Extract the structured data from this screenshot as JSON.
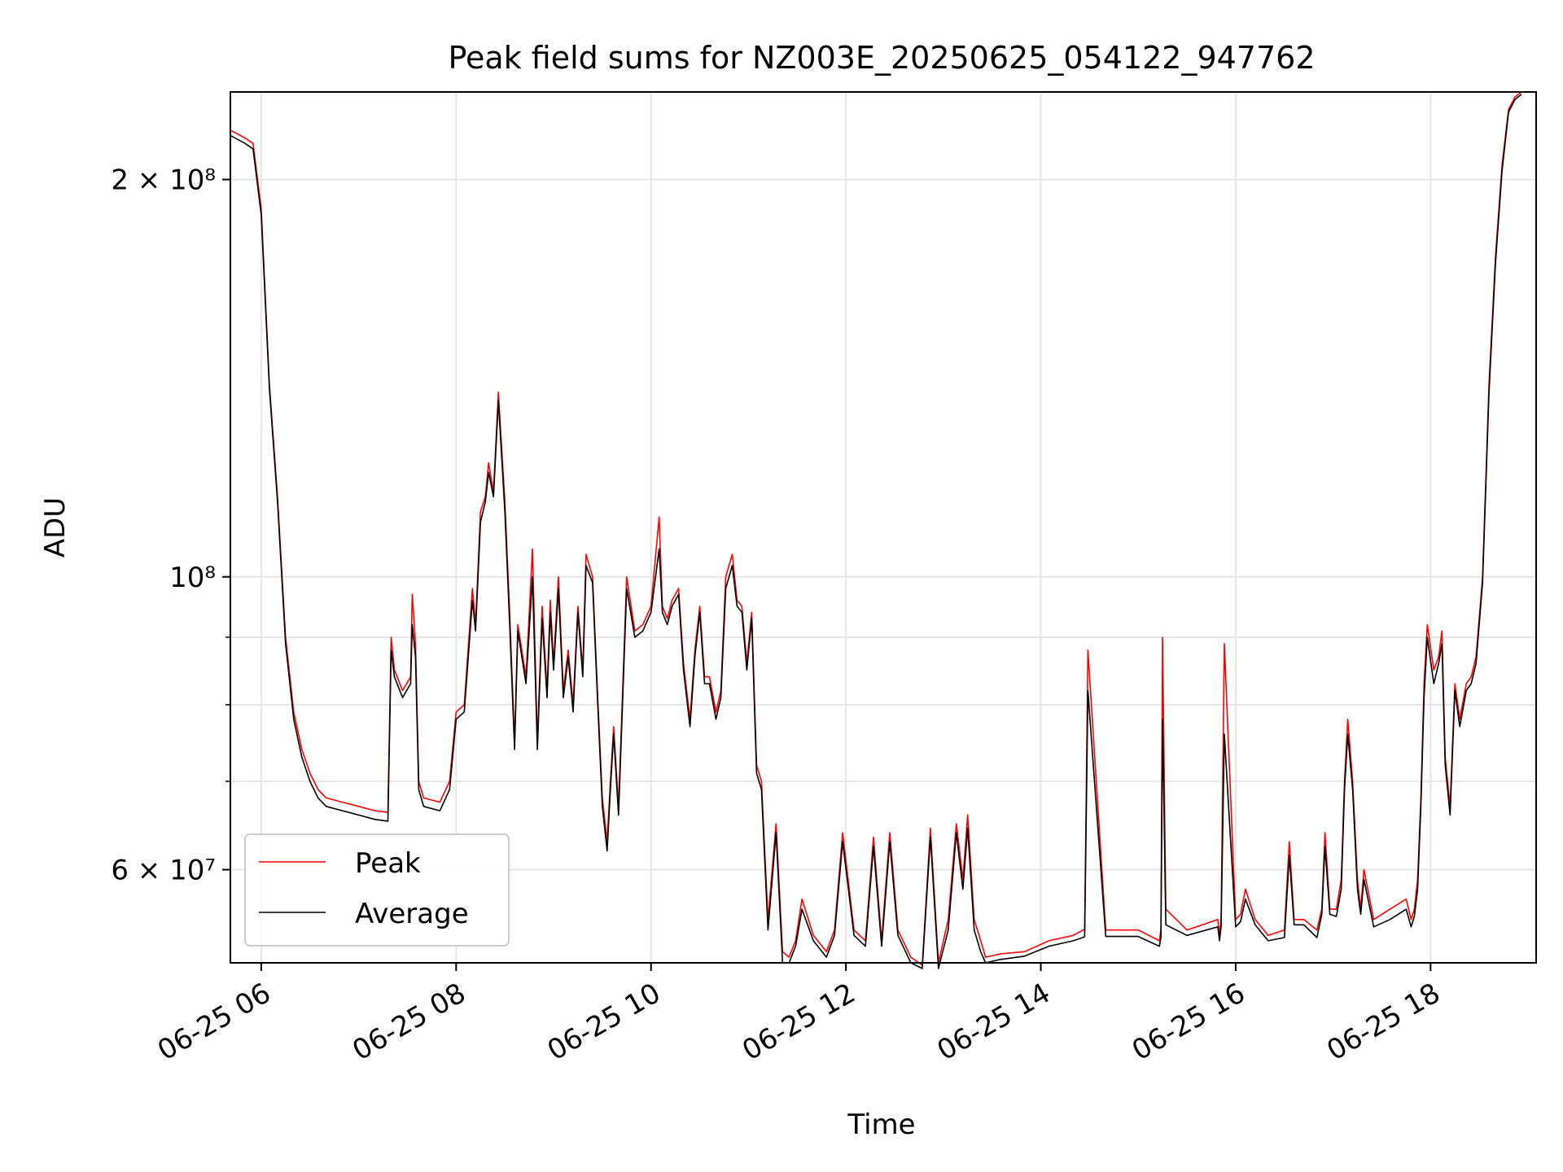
{
  "chart_data": {
    "type": "line",
    "title": "Peak field sums for NZ003E_20250625_054122_947762",
    "xlabel": "Time",
    "ylabel": "ADU",
    "y_scale": "log",
    "grid": true,
    "legend": "lower-left",
    "xlim": [
      "2025-06-25 05:41",
      "2025-06-25 19:05"
    ],
    "ylim": [
      51000000,
      233000000
    ],
    "x_ticks": [
      {
        "t": "2025-06-25 06:00",
        "label": "06-25 06"
      },
      {
        "t": "2025-06-25 08:00",
        "label": "06-25 08"
      },
      {
        "t": "2025-06-25 10:00",
        "label": "06-25 10"
      },
      {
        "t": "2025-06-25 12:00",
        "label": "06-25 12"
      },
      {
        "t": "2025-06-25 14:00",
        "label": "06-25 14"
      },
      {
        "t": "2025-06-25 16:00",
        "label": "06-25 16"
      },
      {
        "t": "2025-06-25 18:00",
        "label": "06-25 18"
      }
    ],
    "y_major_ticks": [
      {
        "v": 60000000,
        "label": "6 × 10⁷"
      },
      {
        "v": 100000000,
        "label": "10⁸"
      },
      {
        "v": 200000000,
        "label": "2 × 10⁸"
      }
    ],
    "y_minor_ticks": [
      70000000,
      80000000,
      90000000
    ],
    "series": [
      {
        "name": "Peak",
        "color": "#ff0000"
      },
      {
        "name": "Average",
        "color": "#000000"
      }
    ],
    "x": [
      "2025-06-25 05:41",
      "2025-06-25 05:50",
      "2025-06-25 05:55",
      "2025-06-25 06:00",
      "2025-06-25 06:05",
      "2025-06-25 06:10",
      "2025-06-25 06:15",
      "2025-06-25 06:20",
      "2025-06-25 06:25",
      "2025-06-25 06:30",
      "2025-06-25 06:35",
      "2025-06-25 06:40",
      "2025-06-25 06:50",
      "2025-06-25 07:00",
      "2025-06-25 07:10",
      "2025-06-25 07:18",
      "2025-06-25 07:20",
      "2025-06-25 07:22",
      "2025-06-25 07:27",
      "2025-06-25 07:32",
      "2025-06-25 07:33",
      "2025-06-25 07:35",
      "2025-06-25 07:37",
      "2025-06-25 07:40",
      "2025-06-25 07:50",
      "2025-06-25 07:56",
      "2025-06-25 08:00",
      "2025-06-25 08:05",
      "2025-06-25 08:10",
      "2025-06-25 08:12",
      "2025-06-25 08:15",
      "2025-06-25 08:18",
      "2025-06-25 08:20",
      "2025-06-25 08:23",
      "2025-06-25 08:26",
      "2025-06-25 08:30",
      "2025-06-25 08:33",
      "2025-06-25 08:36",
      "2025-06-25 08:38",
      "2025-06-25 08:43",
      "2025-06-25 08:47",
      "2025-06-25 08:50",
      "2025-06-25 08:53",
      "2025-06-25 08:56",
      "2025-06-25 08:58",
      "2025-06-25 09:00",
      "2025-06-25 09:03",
      "2025-06-25 09:06",
      "2025-06-25 09:09",
      "2025-06-25 09:12",
      "2025-06-25 09:15",
      "2025-06-25 09:18",
      "2025-06-25 09:20",
      "2025-06-25 09:24",
      "2025-06-25 09:27",
      "2025-06-25 09:30",
      "2025-06-25 09:33",
      "2025-06-25 09:35",
      "2025-06-25 09:37",
      "2025-06-25 09:40",
      "2025-06-25 09:45",
      "2025-06-25 09:50",
      "2025-06-25 09:55",
      "2025-06-25 10:00",
      "2025-06-25 10:05",
      "2025-06-25 10:07",
      "2025-06-25 10:10",
      "2025-06-25 10:13",
      "2025-06-25 10:17",
      "2025-06-25 10:20",
      "2025-06-25 10:24",
      "2025-06-25 10:27",
      "2025-06-25 10:30",
      "2025-06-25 10:33",
      "2025-06-25 10:36",
      "2025-06-25 10:40",
      "2025-06-25 10:43",
      "2025-06-25 10:46",
      "2025-06-25 10:50",
      "2025-06-25 10:53",
      "2025-06-25 10:56",
      "2025-06-25 10:59",
      "2025-06-25 11:02",
      "2025-06-25 11:05",
      "2025-06-25 11:08",
      "2025-06-25 11:12",
      "2025-06-25 11:17",
      "2025-06-25 11:21",
      "2025-06-25 11:25",
      "2025-06-25 11:29",
      "2025-06-25 11:33",
      "2025-06-25 11:40",
      "2025-06-25 11:48",
      "2025-06-25 11:53",
      "2025-06-25 11:58",
      "2025-06-25 12:05",
      "2025-06-25 12:12",
      "2025-06-25 12:17",
      "2025-06-25 12:22",
      "2025-06-25 12:27",
      "2025-06-25 12:32",
      "2025-06-25 12:40",
      "2025-06-25 12:47",
      "2025-06-25 12:52",
      "2025-06-25 12:57",
      "2025-06-25 13:03",
      "2025-06-25 13:08",
      "2025-06-25 13:12",
      "2025-06-25 13:15",
      "2025-06-25 13:19",
      "2025-06-25 13:23",
      "2025-06-25 13:26",
      "2025-06-25 13:35",
      "2025-06-25 13:50",
      "2025-06-25 14:05",
      "2025-06-25 14:20",
      "2025-06-25 14:26",
      "2025-06-25 14:27",
      "2025-06-25 14:29",
      "2025-06-25 14:40",
      "2025-06-25 15:00",
      "2025-06-25 15:13",
      "2025-06-25 15:14",
      "2025-06-25 15:15",
      "2025-06-25 15:17",
      "2025-06-25 15:30",
      "2025-06-25 15:49",
      "2025-06-25 15:50",
      "2025-06-25 15:51",
      "2025-06-25 15:53",
      "2025-06-25 16:00",
      "2025-06-25 16:03",
      "2025-06-25 16:06",
      "2025-06-25 16:12",
      "2025-06-25 16:20",
      "2025-06-25 16:30",
      "2025-06-25 16:33",
      "2025-06-25 16:36",
      "2025-06-25 16:42",
      "2025-06-25 16:50",
      "2025-06-25 16:53",
      "2025-06-25 16:55",
      "2025-06-25 16:58",
      "2025-06-25 17:02",
      "2025-06-25 17:05",
      "2025-06-25 17:07",
      "2025-06-25 17:09",
      "2025-06-25 17:12",
      "2025-06-25 17:15",
      "2025-06-25 17:17",
      "2025-06-25 17:19",
      "2025-06-25 17:25",
      "2025-06-25 17:35",
      "2025-06-25 17:45",
      "2025-06-25 17:48",
      "2025-06-25 17:50",
      "2025-06-25 17:52",
      "2025-06-25 17:54",
      "2025-06-25 17:56",
      "2025-06-25 17:58",
      "2025-06-25 18:02",
      "2025-06-25 18:05",
      "2025-06-25 18:07",
      "2025-06-25 18:09",
      "2025-06-25 18:12",
      "2025-06-25 18:15",
      "2025-06-25 18:18",
      "2025-06-25 18:22",
      "2025-06-25 18:25",
      "2025-06-25 18:28",
      "2025-06-25 18:32",
      "2025-06-25 18:36",
      "2025-06-25 18:40",
      "2025-06-25 18:44",
      "2025-06-25 18:48",
      "2025-06-25 18:52",
      "2025-06-25 18:56",
      "2025-06-25 19:05"
    ],
    "peak": [
      218000000,
      215000000,
      213000000,
      190000000,
      140000000,
      115000000,
      90000000,
      79000000,
      74000000,
      71000000,
      69000000,
      68000000,
      67500000,
      67000000,
      66500000,
      66300000,
      90000000,
      85000000,
      82000000,
      84000000,
      97000000,
      89000000,
      70000000,
      68000000,
      67500000,
      70000000,
      79000000,
      80000000,
      98000000,
      92000000,
      112000000,
      115000000,
      122000000,
      116000000,
      138000000,
      114000000,
      94000000,
      75000000,
      92000000,
      84000000,
      105000000,
      75000000,
      95000000,
      82000000,
      96000000,
      86000000,
      100000000,
      82000000,
      88000000,
      80000000,
      95000000,
      85000000,
      104000000,
      100000000,
      82000000,
      68000000,
      63000000,
      70000000,
      77000000,
      67000000,
      100000000,
      91000000,
      92000000,
      95000000,
      111000000,
      95000000,
      93000000,
      96000000,
      98000000,
      86000000,
      78000000,
      88000000,
      95000000,
      84000000,
      84000000,
      79000000,
      82000000,
      100000000,
      104000000,
      96000000,
      95000000,
      86000000,
      94000000,
      72000000,
      70000000,
      55000000,
      65000000,
      52000000,
      51500000,
      53000000,
      57000000,
      53500000,
      52000000,
      54000000,
      64000000,
      54000000,
      53000000,
      63500000,
      53000000,
      64000000,
      54000000,
      51500000,
      50800000,
      64500000,
      51000000,
      55000000,
      65000000,
      59000000,
      66000000,
      55000000,
      53000000,
      51500000,
      51800000,
      52000000,
      53000000,
      53500000,
      54000000,
      54000000,
      88000000,
      54000000,
      54000000,
      53000000,
      54000000,
      90000000,
      56000000,
      54000000,
      55000000,
      53500000,
      55000000,
      89000000,
      55000000,
      55500000,
      58000000,
      55000000,
      53500000,
      54000000,
      63000000,
      55000000,
      55000000,
      54000000,
      56000000,
      64000000,
      56000000,
      56000000,
      59000000,
      70000000,
      78000000,
      70000000,
      59000000,
      56000000,
      60000000,
      55000000,
      56000000,
      57000000,
      55000000,
      56000000,
      59000000,
      68000000,
      83000000,
      92000000,
      85000000,
      87000000,
      91000000,
      73000000,
      67000000,
      83000000,
      78000000,
      83000000,
      84000000,
      87000000,
      100000000,
      140000000,
      175000000,
      205000000,
      226000000,
      231000000,
      233000000
    ],
    "average": [
      216000000,
      213000000,
      211000000,
      188000000,
      139000000,
      114000000,
      89000000,
      78000000,
      73000000,
      70000000,
      68000000,
      67000000,
      66500000,
      66000000,
      65500000,
      65300000,
      88000000,
      84000000,
      81000000,
      83000000,
      92000000,
      87000000,
      69000000,
      67000000,
      66500000,
      69000000,
      78000000,
      79000000,
      96000000,
      91000000,
      110000000,
      114000000,
      120000000,
      115000000,
      136000000,
      112000000,
      92000000,
      74000000,
      91000000,
      83000000,
      100000000,
      74000000,
      93000000,
      81000000,
      94000000,
      85000000,
      98000000,
      81000000,
      87000000,
      79000000,
      94000000,
      84000000,
      102000000,
      99000000,
      81000000,
      67000000,
      62000000,
      69000000,
      76000000,
      66000000,
      98000000,
      90000000,
      91000000,
      94000000,
      105000000,
      94000000,
      92000000,
      95000000,
      97000000,
      85000000,
      77000000,
      87000000,
      94000000,
      83000000,
      83000000,
      78000000,
      81000000,
      98000000,
      102000000,
      95000000,
      94000000,
      85000000,
      93000000,
      71000000,
      69000000,
      54000000,
      64000000,
      51000000,
      51000000,
      52500000,
      56000000,
      53000000,
      51500000,
      53500000,
      63000000,
      53500000,
      52500000,
      62500000,
      52500000,
      63000000,
      53500000,
      51000000,
      50500000,
      63500000,
      50500000,
      54000000,
      64000000,
      58000000,
      64500000,
      54000000,
      52000000,
      51000000,
      51300000,
      51600000,
      52500000,
      53000000,
      53300000,
      53400000,
      82000000,
      53400000,
      53400000,
      52500000,
      53300000,
      78000000,
      54500000,
      53500000,
      54300000,
      53000000,
      54300000,
      76000000,
      54300000,
      54800000,
      57000000,
      54500000,
      53000000,
      53300000,
      61500000,
      54500000,
      54500000,
      53300000,
      55500000,
      62500000,
      55500000,
      55300000,
      58000000,
      69000000,
      76000000,
      69000000,
      58000000,
      55500000,
      59000000,
      54300000,
      55000000,
      56000000,
      54300000,
      55300000,
      58000000,
      67000000,
      81000000,
      90000000,
      83000000,
      86000000,
      89000000,
      72000000,
      66000000,
      82000000,
      77000000,
      82000000,
      83000000,
      86000000,
      99000000,
      138000000,
      173000000,
      203000000,
      225000000,
      230000000,
      232000000
    ]
  }
}
